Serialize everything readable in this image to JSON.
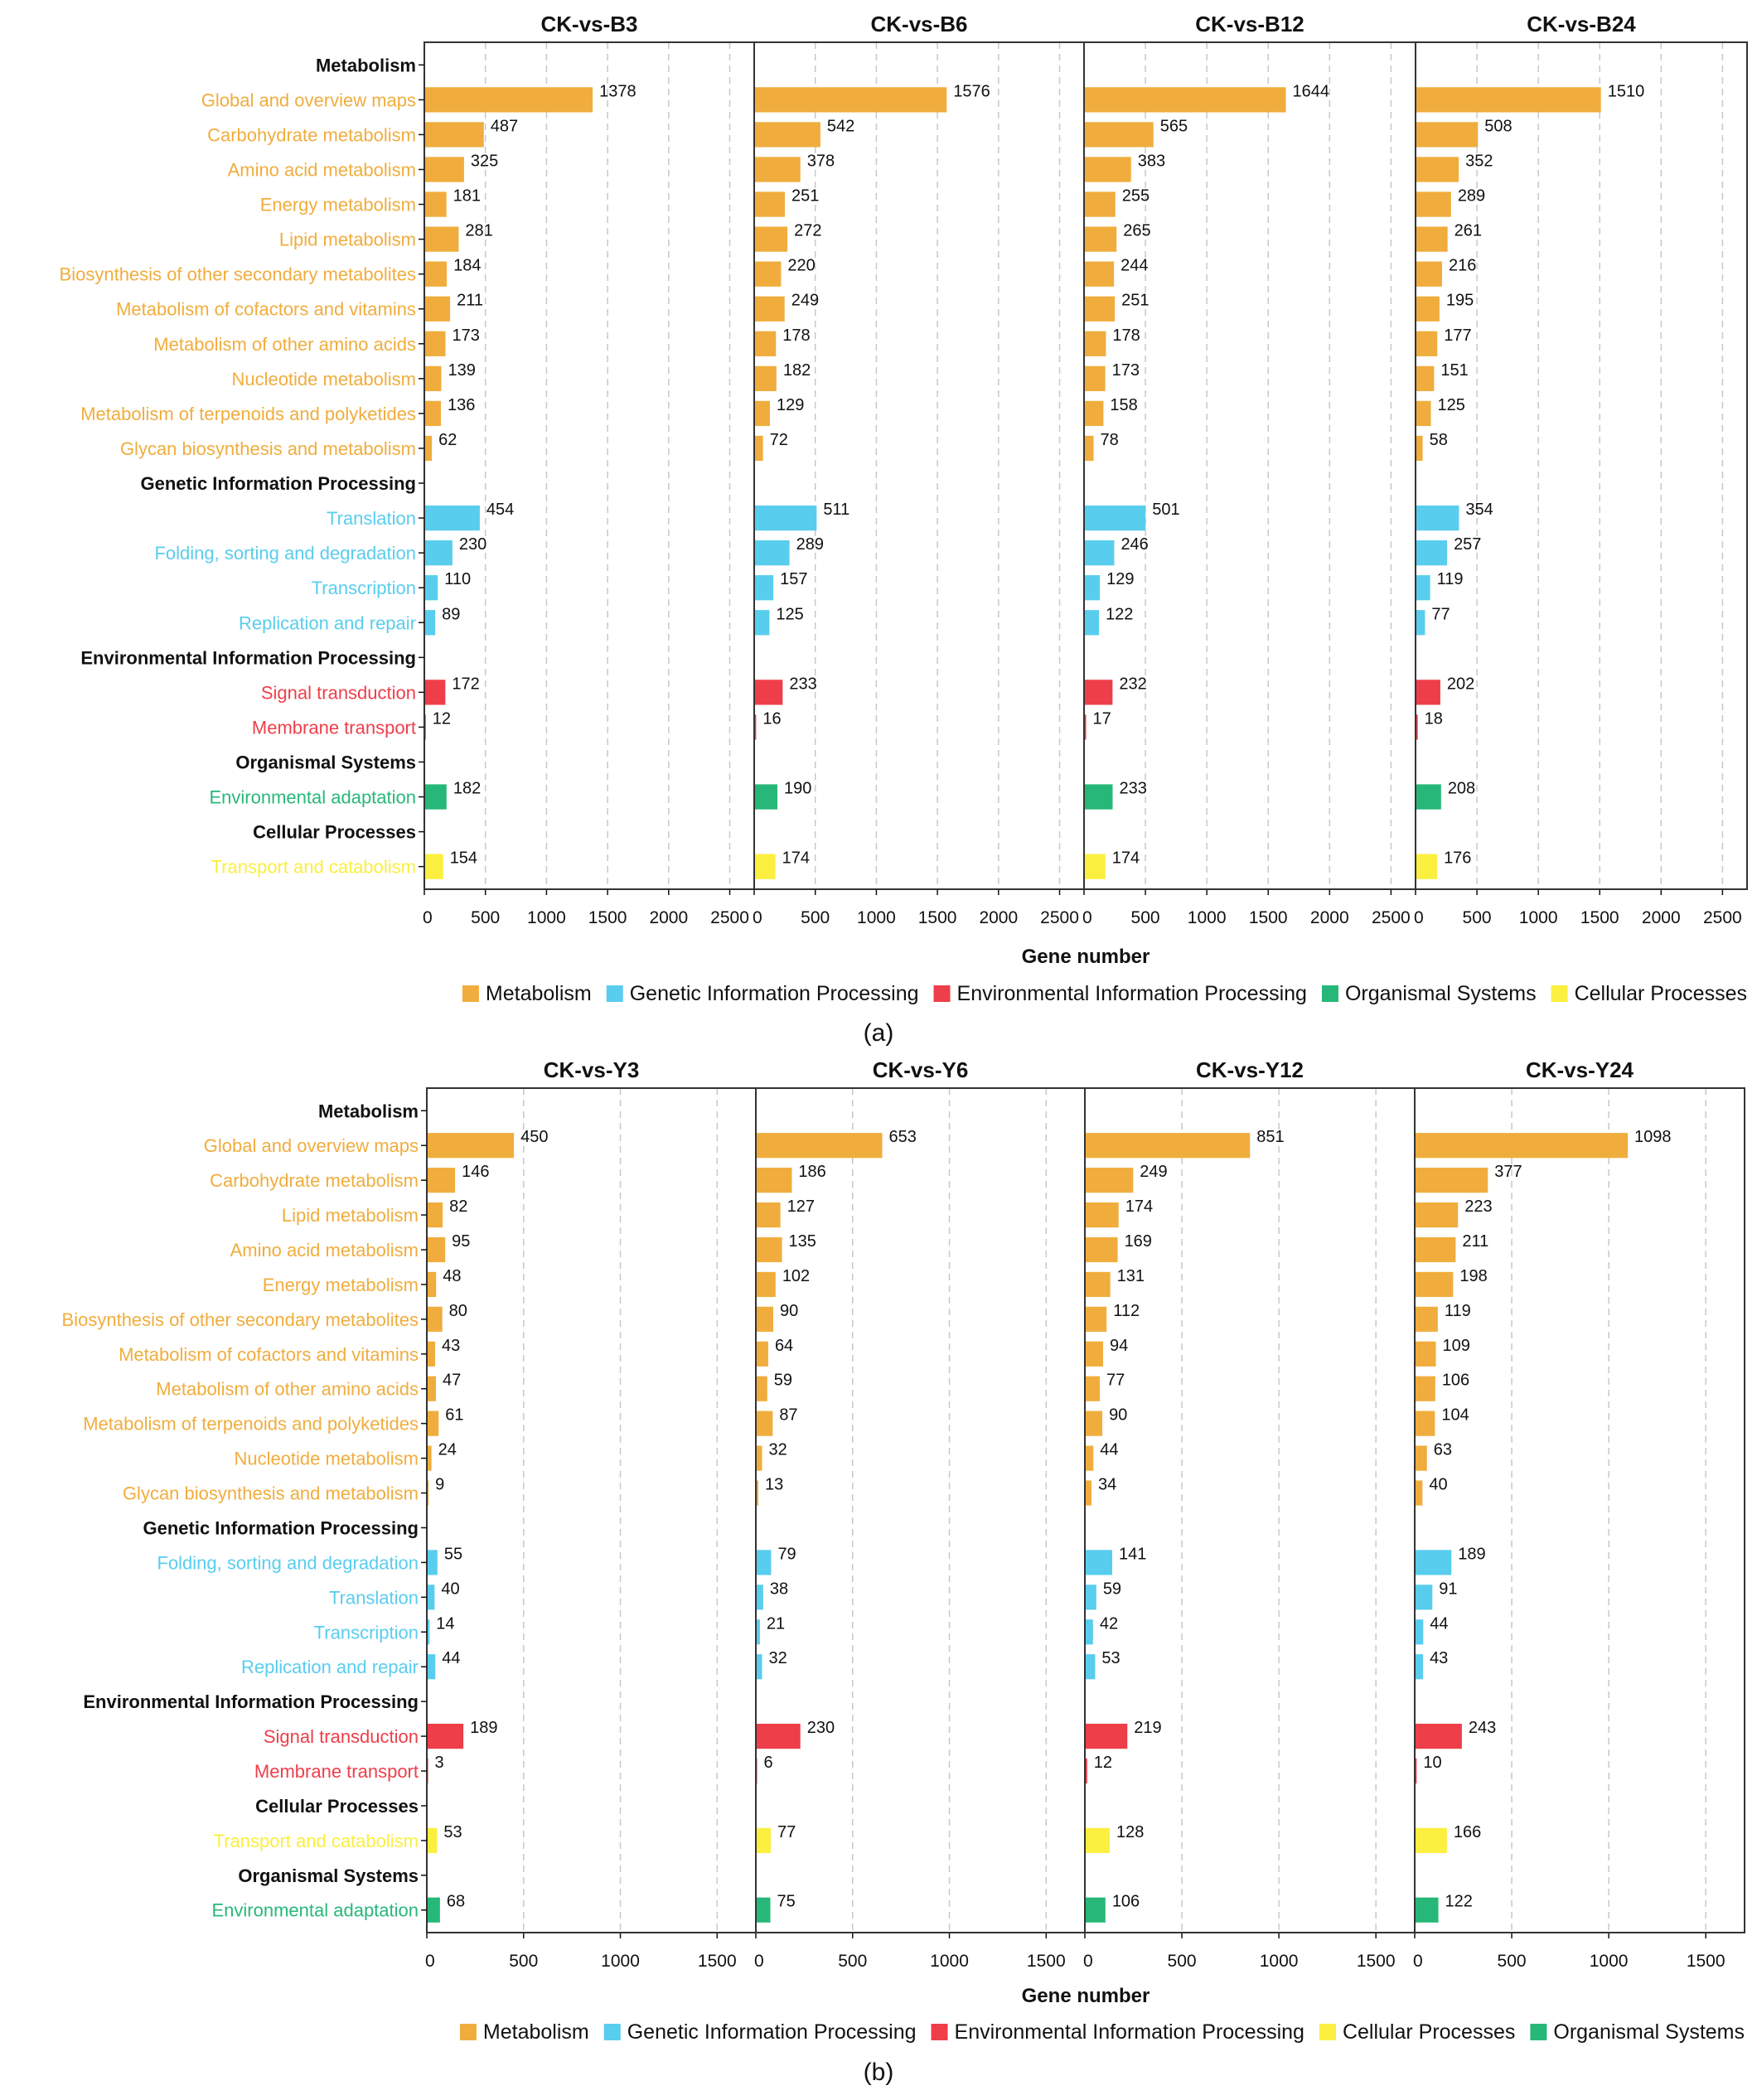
{
  "figure": {
    "colors": {
      "Metabolism": "#f0ad3d",
      "Genetic Information Processing": "#59cdee",
      "Environmental Information Processing": "#ee3e4a",
      "Organismal Systems": "#27b879",
      "Cellular Processes": "#fbef3f",
      "text": "#111111",
      "grid": "#c8c8c8"
    }
  },
  "chart_data": [
    {
      "type": "bar",
      "orientation": "horizontal",
      "figure_label": "(a)",
      "xlabel": "Gene number",
      "xlim": [
        0,
        2700
      ],
      "xticks": [
        0,
        500,
        1000,
        1500,
        2000,
        2500
      ],
      "legend": [
        "Metabolism",
        "Genetic Information Processing",
        "Environmental Information Processing",
        "Organismal Systems",
        "Cellular Processes"
      ],
      "rows": [
        {
          "label": "Metabolism",
          "header": true
        },
        {
          "label": "Global and overview maps",
          "group": "Metabolism"
        },
        {
          "label": "Carbohydrate metabolism",
          "group": "Metabolism"
        },
        {
          "label": "Amino acid metabolism",
          "group": "Metabolism"
        },
        {
          "label": "Energy metabolism",
          "group": "Metabolism"
        },
        {
          "label": "Lipid metabolism",
          "group": "Metabolism"
        },
        {
          "label": "Biosynthesis of other secondary metabolites",
          "group": "Metabolism"
        },
        {
          "label": "Metabolism of cofactors and vitamins",
          "group": "Metabolism"
        },
        {
          "label": "Metabolism of other amino acids",
          "group": "Metabolism"
        },
        {
          "label": "Nucleotide metabolism",
          "group": "Metabolism"
        },
        {
          "label": "Metabolism of terpenoids and polyketides",
          "group": "Metabolism"
        },
        {
          "label": "Glycan biosynthesis and metabolism",
          "group": "Metabolism"
        },
        {
          "label": "Genetic Information Processing",
          "header": true
        },
        {
          "label": "Translation",
          "group": "Genetic Information Processing"
        },
        {
          "label": "Folding, sorting and degradation",
          "group": "Genetic Information Processing"
        },
        {
          "label": "Transcription",
          "group": "Genetic Information Processing"
        },
        {
          "label": "Replication and repair",
          "group": "Genetic Information Processing"
        },
        {
          "label": "Environmental Information Processing",
          "header": true
        },
        {
          "label": "Signal transduction",
          "group": "Environmental Information Processing"
        },
        {
          "label": "Membrane transport",
          "group": "Environmental Information Processing"
        },
        {
          "label": "Organismal Systems",
          "header": true
        },
        {
          "label": "Environmental adaptation",
          "group": "Organismal Systems"
        },
        {
          "label": "Cellular Processes",
          "header": true
        },
        {
          "label": "Transport and catabolism",
          "group": "Cellular Processes"
        }
      ],
      "panels": [
        {
          "title": "CK-vs-B3",
          "values": [
            null,
            1378,
            487,
            325,
            181,
            281,
            184,
            211,
            173,
            139,
            136,
            62,
            null,
            454,
            230,
            110,
            89,
            null,
            172,
            12,
            null,
            182,
            null,
            154
          ]
        },
        {
          "title": "CK-vs-B6",
          "values": [
            null,
            1576,
            542,
            378,
            251,
            272,
            220,
            249,
            178,
            182,
            129,
            72,
            null,
            511,
            289,
            157,
            125,
            null,
            233,
            16,
            null,
            190,
            null,
            174
          ]
        },
        {
          "title": "CK-vs-B12",
          "values": [
            null,
            1644,
            565,
            383,
            255,
            265,
            244,
            251,
            178,
            173,
            158,
            78,
            null,
            501,
            246,
            129,
            122,
            null,
            232,
            17,
            null,
            233,
            null,
            174
          ]
        },
        {
          "title": "CK-vs-B24",
          "values": [
            null,
            1510,
            508,
            352,
            289,
            261,
            216,
            195,
            177,
            151,
            125,
            58,
            null,
            354,
            257,
            119,
            77,
            null,
            202,
            18,
            null,
            208,
            null,
            176
          ]
        }
      ]
    },
    {
      "type": "bar",
      "orientation": "horizontal",
      "figure_label": "(b)",
      "xlabel": "Gene number",
      "xlim": [
        0,
        1700
      ],
      "xticks": [
        0,
        500,
        1000,
        1500
      ],
      "legend": [
        "Metabolism",
        "Genetic Information Processing",
        "Environmental Information Processing",
        "Cellular Processes",
        "Organismal Systems"
      ],
      "rows": [
        {
          "label": "Metabolism",
          "header": true
        },
        {
          "label": "Global and overview maps",
          "group": "Metabolism"
        },
        {
          "label": "Carbohydrate metabolism",
          "group": "Metabolism"
        },
        {
          "label": "Lipid metabolism",
          "group": "Metabolism"
        },
        {
          "label": "Amino acid metabolism",
          "group": "Metabolism"
        },
        {
          "label": "Energy metabolism",
          "group": "Metabolism"
        },
        {
          "label": "Biosynthesis of other secondary metabolites",
          "group": "Metabolism"
        },
        {
          "label": "Metabolism of cofactors and vitamins",
          "group": "Metabolism"
        },
        {
          "label": "Metabolism of other amino acids",
          "group": "Metabolism"
        },
        {
          "label": "Metabolism of terpenoids and polyketides",
          "group": "Metabolism"
        },
        {
          "label": "Nucleotide metabolism",
          "group": "Metabolism"
        },
        {
          "label": "Glycan biosynthesis and metabolism",
          "group": "Metabolism"
        },
        {
          "label": "Genetic Information Processing",
          "header": true
        },
        {
          "label": "Folding, sorting and degradation",
          "group": "Genetic Information Processing"
        },
        {
          "label": "Translation",
          "group": "Genetic Information Processing"
        },
        {
          "label": "Transcription",
          "group": "Genetic Information Processing"
        },
        {
          "label": "Replication and repair",
          "group": "Genetic Information Processing"
        },
        {
          "label": "Environmental Information Processing",
          "header": true
        },
        {
          "label": "Signal transduction",
          "group": "Environmental Information Processing"
        },
        {
          "label": "Membrane transport",
          "group": "Environmental Information Processing"
        },
        {
          "label": "Cellular Processes",
          "header": true
        },
        {
          "label": "Transport and catabolism",
          "group": "Cellular Processes"
        },
        {
          "label": "Organismal Systems",
          "header": true
        },
        {
          "label": "Environmental adaptation",
          "group": "Organismal Systems"
        }
      ],
      "panels": [
        {
          "title": "CK-vs-Y3",
          "values": [
            null,
            450,
            146,
            82,
            95,
            48,
            80,
            43,
            47,
            61,
            24,
            9,
            null,
            55,
            40,
            14,
            44,
            null,
            189,
            3,
            null,
            53,
            null,
            68
          ]
        },
        {
          "title": "CK-vs-Y6",
          "values": [
            null,
            653,
            186,
            127,
            135,
            102,
            90,
            64,
            59,
            87,
            32,
            13,
            null,
            79,
            38,
            21,
            32,
            null,
            230,
            6,
            null,
            77,
            null,
            75
          ]
        },
        {
          "title": "CK-vs-Y12",
          "values": [
            null,
            851,
            249,
            174,
            169,
            131,
            112,
            94,
            77,
            90,
            44,
            34,
            null,
            141,
            59,
            42,
            53,
            null,
            219,
            12,
            null,
            128,
            null,
            106
          ]
        },
        {
          "title": "CK-vs-Y24",
          "values": [
            null,
            1098,
            377,
            223,
            211,
            198,
            119,
            109,
            106,
            104,
            63,
            40,
            null,
            189,
            91,
            44,
            43,
            null,
            243,
            10,
            null,
            166,
            null,
            122
          ]
        }
      ]
    }
  ]
}
